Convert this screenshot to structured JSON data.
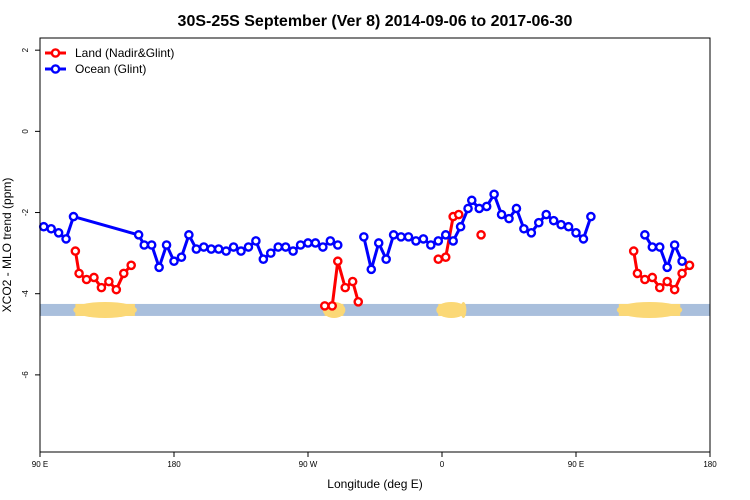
{
  "chart_data": {
    "type": "line",
    "title": "30S-25S September (Ver 8)   2014-09-06 to 2017-06-30",
    "xlabel": "Longitude (deg E)",
    "ylabel": "XCO2 - MLO trend (ppm)",
    "xlim": [
      90,
      450
    ],
    "ylim": [
      -7.9,
      2.3
    ],
    "x_ticks": [
      {
        "value": 90,
        "label": "90 E"
      },
      {
        "value": 162,
        "label": "180"
      },
      {
        "value": 234,
        "label": "90 W"
      },
      {
        "value": 306,
        "label": "0"
      },
      {
        "value": 378,
        "label": "90 E"
      },
      {
        "value": 450,
        "label": "180"
      }
    ],
    "y_ticks": [
      {
        "value": 2,
        "label": "2"
      },
      {
        "value": 0,
        "label": "0"
      },
      {
        "value": -2,
        "label": "-2"
      },
      {
        "value": -4,
        "label": "-4"
      },
      {
        "value": -6,
        "label": "-6"
      }
    ],
    "legend": {
      "position": "top-left",
      "entries": [
        {
          "label": "Land (Nadir&Glint)",
          "color": "#ff0000"
        },
        {
          "label": "Ocean (Glint)",
          "color": "#0000ff"
        }
      ]
    },
    "land_strip": {
      "y": -4.4,
      "ocean_color": "#a9bfdc",
      "land_color": "#fbd876",
      "land_segments": [
        [
          109,
          141
        ],
        [
          243,
          253
        ],
        [
          304,
          318
        ],
        [
          317,
          318
        ],
        [
          401,
          434
        ]
      ]
    },
    "series": [
      {
        "name": "Land (Nadir&Glint)",
        "color": "#ff0000",
        "segments": [
          [
            [
              109,
              -2.95
            ],
            [
              111,
              -3.5
            ],
            [
              115,
              -3.65
            ],
            [
              119,
              -3.6
            ],
            [
              123,
              -3.85
            ],
            [
              127,
              -3.7
            ],
            [
              131,
              -3.9
            ],
            [
              135,
              -3.5
            ],
            [
              139,
              -3.3
            ]
          ],
          [
            [
              243,
              -4.3
            ],
            [
              247,
              -4.3
            ],
            [
              250,
              -3.2
            ],
            [
              254,
              -3.85
            ],
            [
              258,
              -3.7
            ],
            [
              261,
              -4.2
            ]
          ],
          [
            [
              304,
              -3.15
            ],
            [
              308,
              -3.1
            ],
            [
              312,
              -2.1
            ],
            [
              315,
              -2.05
            ]
          ],
          [
            [
              327,
              -2.55
            ]
          ],
          [
            [
              409,
              -2.95
            ],
            [
              411,
              -3.5
            ],
            [
              415,
              -3.65
            ],
            [
              419,
              -3.6
            ],
            [
              423,
              -3.85
            ],
            [
              427,
              -3.7
            ],
            [
              431,
              -3.9
            ],
            [
              435,
              -3.5
            ],
            [
              439,
              -3.3
            ]
          ]
        ]
      },
      {
        "name": "Ocean (Glint)",
        "color": "#0000ff",
        "segments": [
          [
            [
              92,
              -2.35
            ],
            [
              96,
              -2.4
            ],
            [
              100,
              -2.5
            ],
            [
              104,
              -2.65
            ],
            [
              108,
              -2.1
            ],
            [
              143,
              -2.55
            ],
            [
              146,
              -2.8
            ],
            [
              150,
              -2.8
            ],
            [
              154,
              -3.35
            ],
            [
              158,
              -2.8
            ],
            [
              162,
              -3.2
            ],
            [
              166,
              -3.1
            ],
            [
              170,
              -2.55
            ],
            [
              174,
              -2.9
            ],
            [
              178,
              -2.85
            ],
            [
              182,
              -2.9
            ],
            [
              186,
              -2.9
            ],
            [
              190,
              -2.95
            ],
            [
              194,
              -2.85
            ],
            [
              198,
              -2.95
            ],
            [
              202,
              -2.85
            ],
            [
              206,
              -2.7
            ],
            [
              210,
              -3.15
            ],
            [
              214,
              -3.0
            ],
            [
              218,
              -2.85
            ],
            [
              222,
              -2.85
            ],
            [
              226,
              -2.95
            ],
            [
              230,
              -2.8
            ],
            [
              234,
              -2.75
            ],
            [
              238,
              -2.75
            ],
            [
              242,
              -2.85
            ],
            [
              246,
              -2.7
            ],
            [
              250,
              -2.8
            ]
          ],
          [
            [
              264,
              -2.6
            ],
            [
              268,
              -3.4
            ],
            [
              272,
              -2.75
            ],
            [
              276,
              -3.15
            ],
            [
              280,
              -2.55
            ],
            [
              284,
              -2.6
            ],
            [
              288,
              -2.6
            ],
            [
              292,
              -2.7
            ],
            [
              296,
              -2.65
            ],
            [
              300,
              -2.8
            ],
            [
              304,
              -2.7
            ],
            [
              308,
              -2.55
            ],
            [
              312,
              -2.7
            ],
            [
              316,
              -2.35
            ],
            [
              320,
              -1.9
            ]
          ],
          [
            [
              322,
              -1.7
            ],
            [
              326,
              -1.9
            ],
            [
              330,
              -1.85
            ],
            [
              334,
              -1.55
            ],
            [
              338,
              -2.05
            ],
            [
              342,
              -2.15
            ],
            [
              346,
              -1.9
            ],
            [
              350,
              -2.4
            ],
            [
              354,
              -2.5
            ],
            [
              358,
              -2.25
            ],
            [
              362,
              -2.05
            ],
            [
              366,
              -2.2
            ],
            [
              370,
              -2.3
            ],
            [
              374,
              -2.35
            ],
            [
              378,
              -2.5
            ],
            [
              382,
              -2.65
            ],
            [
              386,
              -2.1
            ]
          ],
          [
            [
              415,
              -2.55
            ],
            [
              419,
              -2.85
            ],
            [
              423,
              -2.85
            ],
            [
              427,
              -3.35
            ],
            [
              431,
              -2.8
            ],
            [
              435,
              -3.2
            ]
          ]
        ]
      }
    ]
  }
}
